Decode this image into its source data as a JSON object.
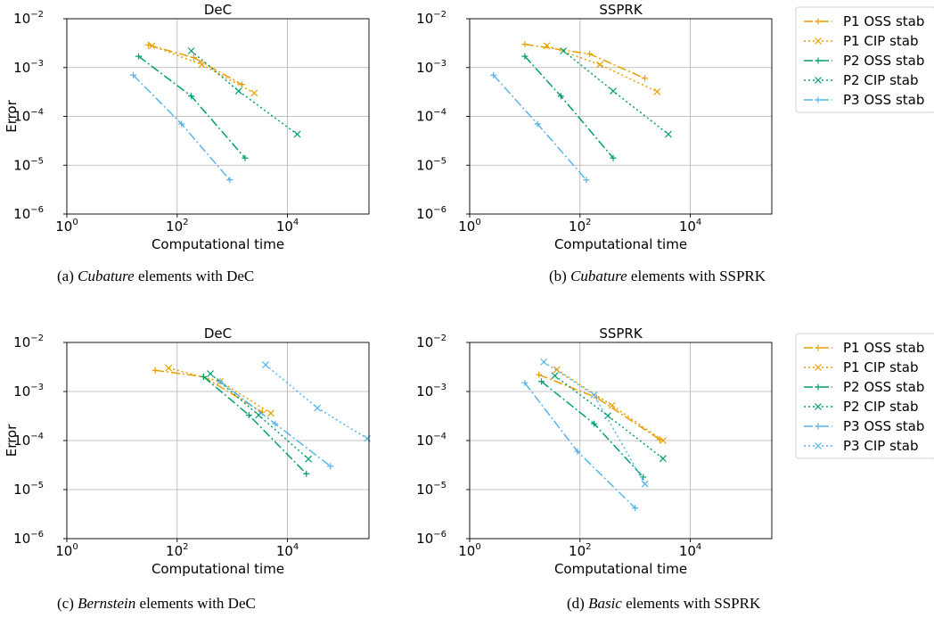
{
  "panels": [
    {
      "id": "a",
      "title": "DeC",
      "ylabel": "Error",
      "xlabel": "Computational time",
      "caption": {
        "prefix": "(a)",
        "emph": "Cubature",
        "rest": "elements with DeC"
      },
      "legend": false,
      "chart_data": {
        "type": "line",
        "title": "DeC",
        "xlabel": "Computational time",
        "ylabel": "Error",
        "xscale": "log",
        "yscale": "log",
        "xlim": [
          1,
          300000
        ],
        "ylim": [
          1e-06,
          0.01
        ],
        "grid": true,
        "series": [
          {
            "name": "P1 OSS stab",
            "color": "#E69F00",
            "dash": "10,3,2,3",
            "marker": "plus",
            "x": [
              30,
              200,
              1500
            ],
            "y": [
              0.0029,
              0.0016,
              0.00045
            ]
          },
          {
            "name": "P1 CIP stab",
            "color": "#E69F00",
            "dash": "2,3",
            "marker": "x",
            "x": [
              35,
              280,
              2500
            ],
            "y": [
              0.0028,
              0.00115,
              0.0003
            ]
          },
          {
            "name": "P2 OSS stab",
            "color": "#009E73",
            "dash": "10,3,2,3",
            "marker": "plus",
            "x": [
              20,
              180,
              1700
            ],
            "y": [
              0.0017,
              0.00026,
              1.4e-05
            ]
          },
          {
            "name": "P2 CIP stab",
            "color": "#009E73",
            "dash": "2,3",
            "marker": "x",
            "x": [
              180,
              1300,
              15000
            ],
            "y": [
              0.0022,
              0.00033,
              4.3e-05
            ]
          },
          {
            "name": "P3 OSS stab",
            "color": "#56B4E9",
            "dash": "10,3,2,3",
            "marker": "plus",
            "x": [
              16,
              120,
              900
            ],
            "y": [
              0.0007,
              7e-05,
              5e-06
            ]
          }
        ]
      }
    },
    {
      "id": "b",
      "title": "SSPRK",
      "ylabel": "",
      "xlabel": "Computational time",
      "caption": {
        "prefix": "(b)",
        "emph": "Cubature",
        "rest": "elements with SSPRK"
      },
      "legend": true,
      "chart_data": {
        "type": "line",
        "title": "SSPRK",
        "xlabel": "Computational time",
        "ylabel": "",
        "xscale": "log",
        "yscale": "log",
        "xlim": [
          1,
          300000
        ],
        "ylim": [
          1e-06,
          0.01
        ],
        "grid": true,
        "series": [
          {
            "name": "P1 OSS stab",
            "color": "#E69F00",
            "dash": "10,3,2,3",
            "marker": "plus",
            "x": [
              10,
              150,
              1500
            ],
            "y": [
              0.003,
              0.0019,
              0.0006
            ]
          },
          {
            "name": "P1 CIP stab",
            "color": "#E69F00",
            "dash": "2,3",
            "marker": "x",
            "x": [
              25,
              230,
              2500
            ],
            "y": [
              0.0028,
              0.00115,
              0.00032
            ]
          },
          {
            "name": "P2 OSS stab",
            "color": "#009E73",
            "dash": "10,3,2,3",
            "marker": "plus",
            "x": [
              10,
              45,
              400
            ],
            "y": [
              0.0017,
              0.00026,
              1.4e-05
            ]
          },
          {
            "name": "P2 CIP stab",
            "color": "#009E73",
            "dash": "2,3",
            "marker": "x",
            "x": [
              50,
              400,
              4000
            ],
            "y": [
              0.0022,
              0.00033,
              4.3e-05
            ]
          },
          {
            "name": "P3 OSS stab",
            "color": "#56B4E9",
            "dash": "10,3,2,3",
            "marker": "plus",
            "x": [
              2.7,
              17,
              130
            ],
            "y": [
              0.0007,
              7e-05,
              5e-06
            ]
          }
        ]
      }
    },
    {
      "id": "c",
      "title": "DeC",
      "ylabel": "Error",
      "xlabel": "Computational time",
      "caption": {
        "prefix": "(c)",
        "emph": "Bernstein",
        "rest": "elements with DeC"
      },
      "legend": false,
      "chart_data": {
        "type": "line",
        "title": "DeC",
        "xlabel": "Computational time",
        "ylabel": "Error",
        "xscale": "log",
        "yscale": "log",
        "xlim": [
          1,
          300000
        ],
        "ylim": [
          1e-06,
          0.01
        ],
        "grid": true,
        "series": [
          {
            "name": "P1 OSS stab",
            "color": "#E69F00",
            "dash": "10,3,2,3",
            "marker": "plus",
            "x": [
              40,
              300,
              3500
            ],
            "y": [
              0.0027,
              0.002,
              0.00038
            ]
          },
          {
            "name": "P1 CIP stab",
            "color": "#E69F00",
            "dash": "2,3",
            "marker": "x",
            "x": [
              70,
              600,
              5000
            ],
            "y": [
              0.003,
              0.0016,
              0.00036
            ]
          },
          {
            "name": "P2 OSS stab",
            "color": "#009E73",
            "dash": "10,3,2,3",
            "marker": "plus",
            "x": [
              300,
              2000,
              22000
            ],
            "y": [
              0.002,
              0.00033,
              2.1e-05
            ]
          },
          {
            "name": "P2 CIP stab",
            "color": "#009E73",
            "dash": "2,3",
            "marker": "x",
            "x": [
              400,
              3000,
              24000
            ],
            "y": [
              0.0023,
              0.00033,
              4.2e-05
            ]
          },
          {
            "name": "P3 OSS stab",
            "color": "#56B4E9",
            "dash": "10,3,2,3",
            "marker": "plus",
            "x": [
              600,
              6000,
              60000
            ],
            "y": [
              0.0016,
              0.00022,
              3e-05
            ]
          },
          {
            "name": "P3 CIP stab",
            "color": "#56B4E9",
            "dash": "2,3",
            "marker": "x",
            "x": [
              4000,
              35000,
              280000
            ],
            "y": [
              0.0035,
              0.00046,
              0.00011
            ]
          }
        ]
      }
    },
    {
      "id": "d",
      "title": "SSPRK",
      "ylabel": "",
      "xlabel": "Computational time",
      "caption": {
        "prefix": "(d)",
        "emph": "Basic",
        "rest": "elements with SSPRK"
      },
      "legend": true,
      "chart_data": {
        "type": "line",
        "title": "SSPRK",
        "xlabel": "Computational time",
        "ylabel": "",
        "xscale": "log",
        "yscale": "log",
        "xlim": [
          1,
          300000
        ],
        "ylim": [
          1e-06,
          0.01
        ],
        "grid": true,
        "series": [
          {
            "name": "P1 OSS stab",
            "color": "#E69F00",
            "dash": "10,3,2,3",
            "marker": "plus",
            "x": [
              18,
              200,
              2800
            ],
            "y": [
              0.0022,
              0.00075,
              0.000105
            ]
          },
          {
            "name": "P1 CIP stab",
            "color": "#E69F00",
            "dash": "2,3",
            "marker": "x",
            "x": [
              38,
              380,
              3200
            ],
            "y": [
              0.0028,
              0.00052,
              0.0001
            ]
          },
          {
            "name": "P2 OSS stab",
            "color": "#009E73",
            "dash": "10,3,2,3",
            "marker": "plus",
            "x": [
              20,
              180,
              1400
            ],
            "y": [
              0.0016,
              0.00022,
              1.8e-05
            ]
          },
          {
            "name": "P2 CIP stab",
            "color": "#009E73",
            "dash": "2,3",
            "marker": "x",
            "x": [
              35,
              320,
              3200
            ],
            "y": [
              0.0021,
              0.00032,
              4.3e-05
            ]
          },
          {
            "name": "P3 OSS stab",
            "color": "#56B4E9",
            "dash": "10,3,2,3",
            "marker": "plus",
            "x": [
              10,
              90,
              1000
            ],
            "y": [
              0.0015,
              6e-05,
              4.2e-06
            ]
          },
          {
            "name": "P3 CIP stab",
            "color": "#56B4E9",
            "dash": "2,3",
            "marker": "x",
            "x": [
              22,
              180,
              1500
            ],
            "y": [
              0.004,
              0.00085,
              1.3e-05
            ]
          }
        ]
      }
    }
  ]
}
